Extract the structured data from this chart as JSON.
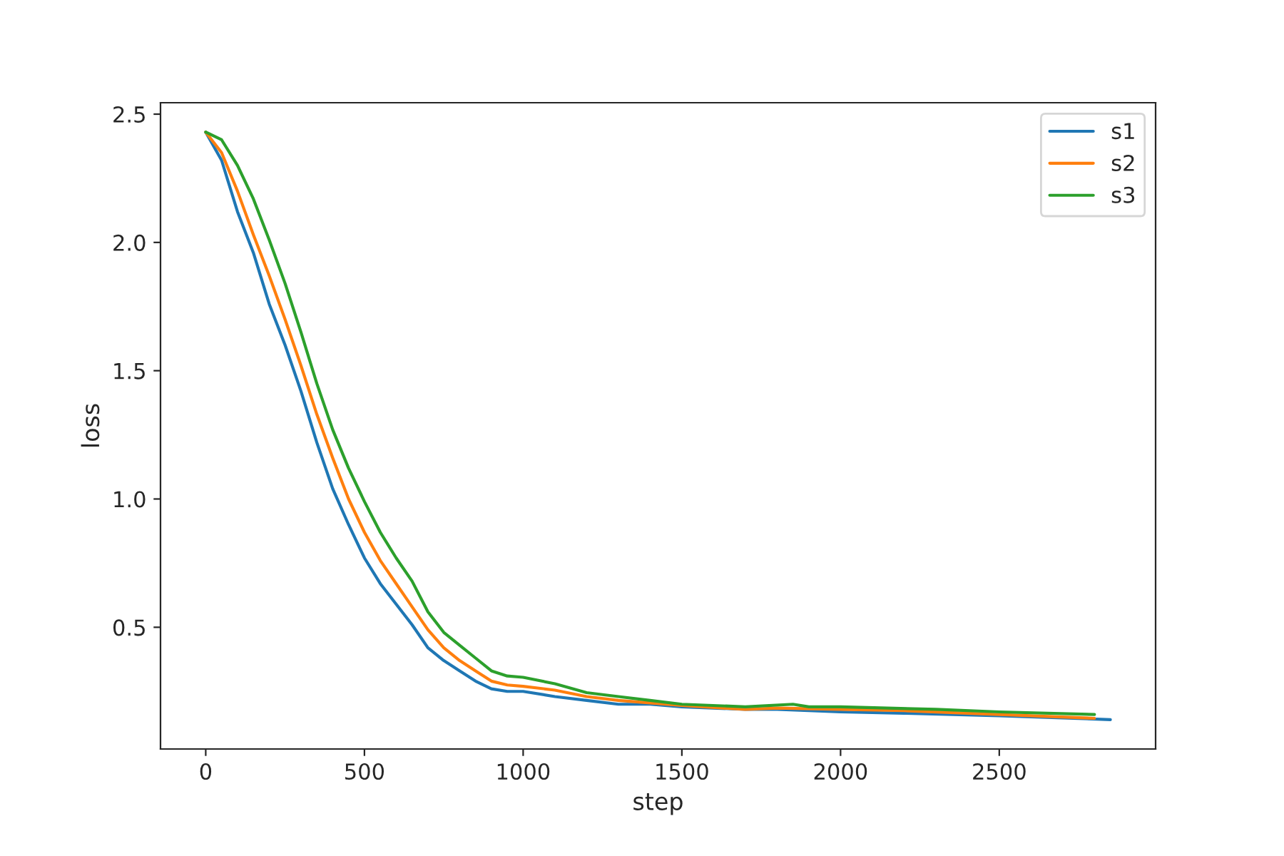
{
  "chart_data": {
    "type": "line",
    "xlabel": "step",
    "ylabel": "loss",
    "xlim": [
      -142.5,
      2992.5
    ],
    "ylim": [
      0.0255,
      2.5445
    ],
    "xticks": [
      0,
      500,
      1000,
      1500,
      2000,
      2500
    ],
    "yticks": [
      {
        "value": 0.5,
        "label": "0.5"
      },
      {
        "value": 1.0,
        "label": "1.0"
      },
      {
        "value": 1.5,
        "label": "1.5"
      },
      {
        "value": 2.0,
        "label": "2.0"
      },
      {
        "value": 2.5,
        "label": "2.5"
      }
    ],
    "grid": false,
    "legend": "top right",
    "line_style": "solid",
    "marker": "none",
    "series": [
      {
        "name": "s1",
        "color": "#1f77b4",
        "x": [
          0,
          50,
          100,
          150,
          200,
          250,
          300,
          350,
          400,
          450,
          500,
          550,
          600,
          650,
          700,
          750,
          800,
          850,
          900,
          950,
          1000,
          1100,
          1200,
          1300,
          1400,
          1500,
          1700,
          1800,
          2000,
          2200,
          2500,
          2850
        ],
        "values": [
          2.43,
          2.32,
          2.12,
          1.96,
          1.76,
          1.6,
          1.42,
          1.22,
          1.04,
          0.9,
          0.77,
          0.67,
          0.59,
          0.51,
          0.42,
          0.37,
          0.33,
          0.29,
          0.26,
          0.25,
          0.25,
          0.23,
          0.215,
          0.2,
          0.2,
          0.19,
          0.18,
          0.18,
          0.17,
          0.165,
          0.155,
          0.14
        ]
      },
      {
        "name": "s2",
        "color": "#ff7f0e",
        "x": [
          0,
          50,
          100,
          150,
          200,
          250,
          300,
          350,
          400,
          450,
          500,
          550,
          600,
          650,
          700,
          750,
          800,
          850,
          900,
          950,
          1000,
          1100,
          1200,
          1300,
          1400,
          1500,
          1700,
          1800,
          2000,
          2200,
          2500,
          2800
        ],
        "values": [
          2.43,
          2.35,
          2.2,
          2.03,
          1.87,
          1.7,
          1.52,
          1.33,
          1.16,
          1.0,
          0.87,
          0.76,
          0.67,
          0.58,
          0.49,
          0.42,
          0.37,
          0.33,
          0.29,
          0.275,
          0.27,
          0.255,
          0.23,
          0.215,
          0.205,
          0.195,
          0.18,
          0.185,
          0.18,
          0.175,
          0.16,
          0.145
        ]
      },
      {
        "name": "s3",
        "color": "#2ca02c",
        "x": [
          0,
          50,
          100,
          150,
          200,
          250,
          300,
          350,
          400,
          450,
          500,
          550,
          600,
          650,
          700,
          750,
          800,
          850,
          900,
          950,
          1000,
          1100,
          1200,
          1300,
          1400,
          1500,
          1700,
          1850,
          1900,
          2000,
          2300,
          2500,
          2800
        ],
        "values": [
          2.43,
          2.4,
          2.3,
          2.17,
          2.01,
          1.84,
          1.65,
          1.45,
          1.27,
          1.12,
          0.99,
          0.87,
          0.77,
          0.68,
          0.56,
          0.48,
          0.43,
          0.38,
          0.33,
          0.31,
          0.305,
          0.28,
          0.245,
          0.23,
          0.215,
          0.2,
          0.19,
          0.2,
          0.19,
          0.19,
          0.18,
          0.17,
          0.16
        ]
      }
    ]
  }
}
